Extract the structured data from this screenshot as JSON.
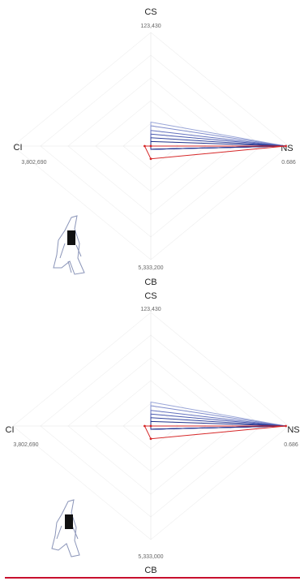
{
  "chart_data": [
    {
      "type": "radar",
      "axes": [
        {
          "name": "CS",
          "max": {
            "value": 123430,
            "label": "123,430"
          }
        },
        {
          "name": "NS",
          "max": 0.686
        },
        {
          "name": "CB",
          "max": {
            "value": 5333200,
            "label": "5,333,200"
          }
        },
        {
          "name": "CI",
          "max": {
            "value": 3802690,
            "label": "3,802,690"
          }
        }
      ],
      "series": [
        {
          "color": "#9aa6d8",
          "values": [
            26000,
            0.672,
            150000,
            0
          ]
        },
        {
          "color": "#7f8ccc",
          "values": [
            22000,
            0.672,
            150000,
            0
          ]
        },
        {
          "color": "#6573bf",
          "values": [
            17000,
            0.672,
            150000,
            0
          ]
        },
        {
          "color": "#4a5ab0",
          "values": [
            13000,
            0.672,
            150000,
            0
          ]
        },
        {
          "color": "#33449e",
          "values": [
            9000,
            0.672,
            150000,
            0
          ]
        },
        {
          "color": "#1f2f8a",
          "values": [
            5000,
            0.672,
            150000,
            0
          ]
        },
        {
          "color": "#d62728",
          "values": [
            0,
            0.672,
            600000,
            170000
          ]
        }
      ]
    },
    {
      "type": "radar",
      "axes": [
        {
          "name": "CS",
          "max": {
            "value": 123430,
            "label": "123,430"
          }
        },
        {
          "name": "NS",
          "max": 0.686
        },
        {
          "name": "CB",
          "max": {
            "value": 5333000,
            "label": "5,333,000"
          }
        },
        {
          "name": "CI",
          "max": {
            "value": 3802690,
            "label": "3,802,690"
          }
        }
      ],
      "series": [
        {
          "color": "#9aa6d8",
          "values": [
            26000,
            0.672,
            150000,
            0
          ]
        },
        {
          "color": "#7f8ccc",
          "values": [
            22000,
            0.672,
            150000,
            0
          ]
        },
        {
          "color": "#6573bf",
          "values": [
            17000,
            0.672,
            150000,
            0
          ]
        },
        {
          "color": "#4a5ab0",
          "values": [
            13000,
            0.672,
            150000,
            0
          ]
        },
        {
          "color": "#33449e",
          "values": [
            9000,
            0.672,
            150000,
            0
          ]
        },
        {
          "color": "#1f2f8a",
          "values": [
            5000,
            0.672,
            150000,
            0
          ]
        },
        {
          "color": "#d62728",
          "values": [
            0,
            0.672,
            600000,
            170000
          ]
        }
      ]
    }
  ]
}
